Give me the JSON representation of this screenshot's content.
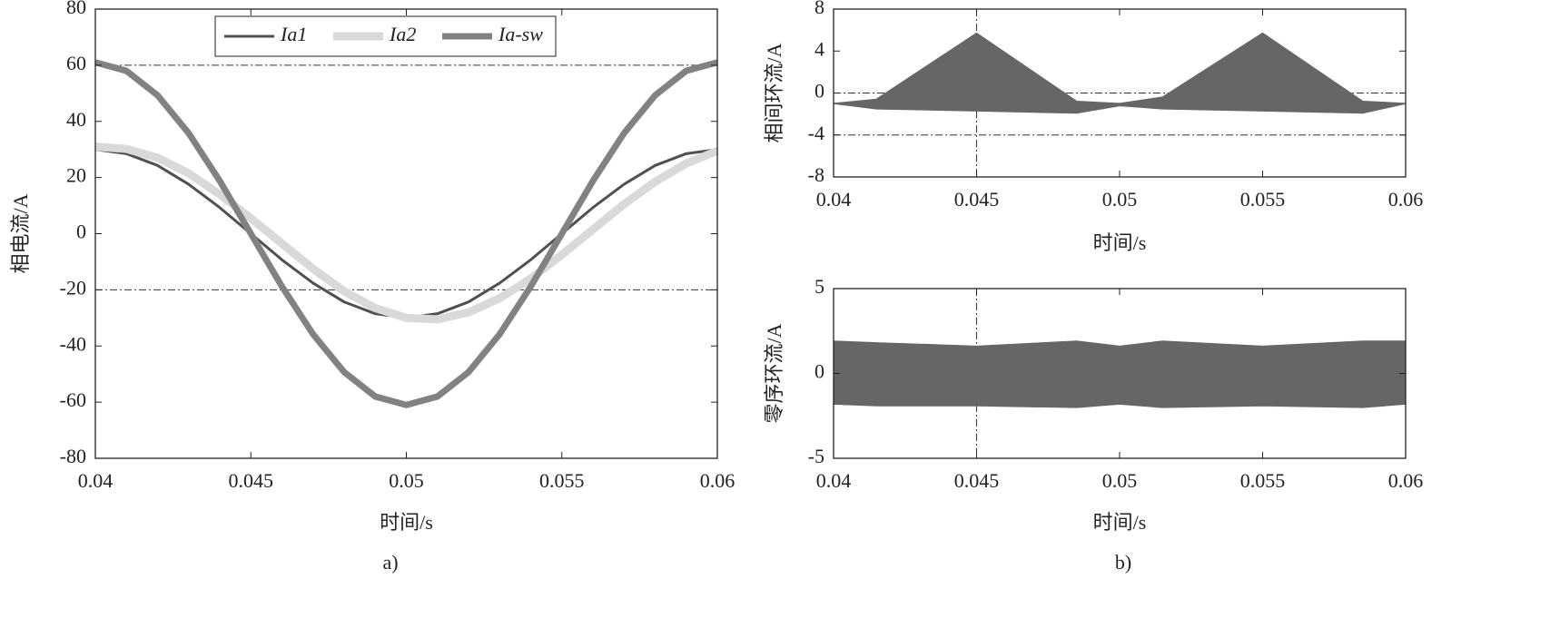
{
  "captions": [
    "a)",
    "b)"
  ],
  "chart_data": [
    {
      "type": "line",
      "ylabel": "相电流/A",
      "xlabel": "时间/s",
      "x": [
        0.04,
        0.041,
        0.042,
        0.043,
        0.044,
        0.045,
        0.046,
        0.047,
        0.048,
        0.049,
        0.05,
        0.051,
        0.052,
        0.053,
        0.054,
        0.055,
        0.056,
        0.057,
        0.058,
        0.059,
        0.06
      ],
      "series": [
        {
          "name": "Ia1",
          "color": "#505050",
          "values": [
            30,
            28.5,
            24.3,
            17.6,
            9.3,
            0,
            -9.3,
            -17.6,
            -24.3,
            -28.5,
            -30,
            -28.5,
            -24.3,
            -17.6,
            -9.3,
            0,
            9.3,
            17.6,
            24.3,
            28.5,
            30
          ]
        },
        {
          "name": "Ia2",
          "color": "#d9d9d9",
          "values": [
            31,
            30.2,
            27,
            21.5,
            14,
            5.5,
            -3.5,
            -12.5,
            -20.5,
            -26.5,
            -30,
            -30.5,
            -28,
            -23,
            -16,
            -7.5,
            1.5,
            10.5,
            18.5,
            25,
            29.5
          ]
        },
        {
          "name": "Ia-sw",
          "color": "#828282",
          "values": [
            61,
            58,
            49.3,
            35.8,
            18.8,
            0,
            -18.8,
            -35.8,
            -49.3,
            -58,
            -61,
            -58,
            -49.3,
            -35.8,
            -18.8,
            0,
            18.8,
            35.8,
            49.3,
            58,
            61
          ]
        }
      ],
      "xlim": [
        0.04,
        0.06
      ],
      "xticks": [
        0.04,
        0.045,
        0.05,
        0.055,
        0.06
      ],
      "ylim": [
        -80,
        80
      ],
      "yticks": [
        -80,
        -60,
        -40,
        -20,
        0,
        20,
        40,
        60,
        80
      ],
      "hlines": [
        60,
        -20
      ],
      "legend": "top"
    },
    {
      "type": "band",
      "ylabel": "相间环流/A",
      "xlabel": "时间/s",
      "color": "#666666",
      "x": [
        0.04,
        0.0415,
        0.045,
        0.0485,
        0.05,
        0.0515,
        0.055,
        0.0585,
        0.06
      ],
      "upper": [
        -1,
        -0.6,
        5.7,
        -0.8,
        -1,
        -0.4,
        5.7,
        -0.8,
        -1
      ],
      "lower": [
        -1,
        -1.5,
        -1.7,
        -1.9,
        -1.2,
        -1.5,
        -1.7,
        -1.9,
        -1
      ],
      "xlim": [
        0.04,
        0.06
      ],
      "xticks": [
        0.04,
        0.045,
        0.05,
        0.055,
        0.06
      ],
      "ylim": [
        -8,
        8
      ],
      "yticks": [
        -8,
        -4,
        0,
        4,
        8
      ],
      "hlines": [
        0,
        -4
      ],
      "vlines": [
        0.045
      ]
    },
    {
      "type": "band",
      "ylabel": "零序环流/A",
      "xlabel": "时间/s",
      "color": "#666666",
      "x": [
        0.04,
        0.0415,
        0.045,
        0.0485,
        0.05,
        0.0515,
        0.055,
        0.0585,
        0.06
      ],
      "upper": [
        1.9,
        1.8,
        1.6,
        1.9,
        1.6,
        1.9,
        1.6,
        1.9,
        1.9
      ],
      "lower": [
        -1.8,
        -1.9,
        -1.9,
        -2,
        -1.8,
        -2,
        -1.9,
        -2,
        -1.8
      ],
      "xlim": [
        0.04,
        0.06
      ],
      "xticks": [
        0.04,
        0.045,
        0.05,
        0.055,
        0.06
      ],
      "ylim": [
        -5,
        5
      ],
      "yticks": [
        -5,
        0,
        5
      ],
      "vlines": [
        0.045
      ]
    }
  ]
}
